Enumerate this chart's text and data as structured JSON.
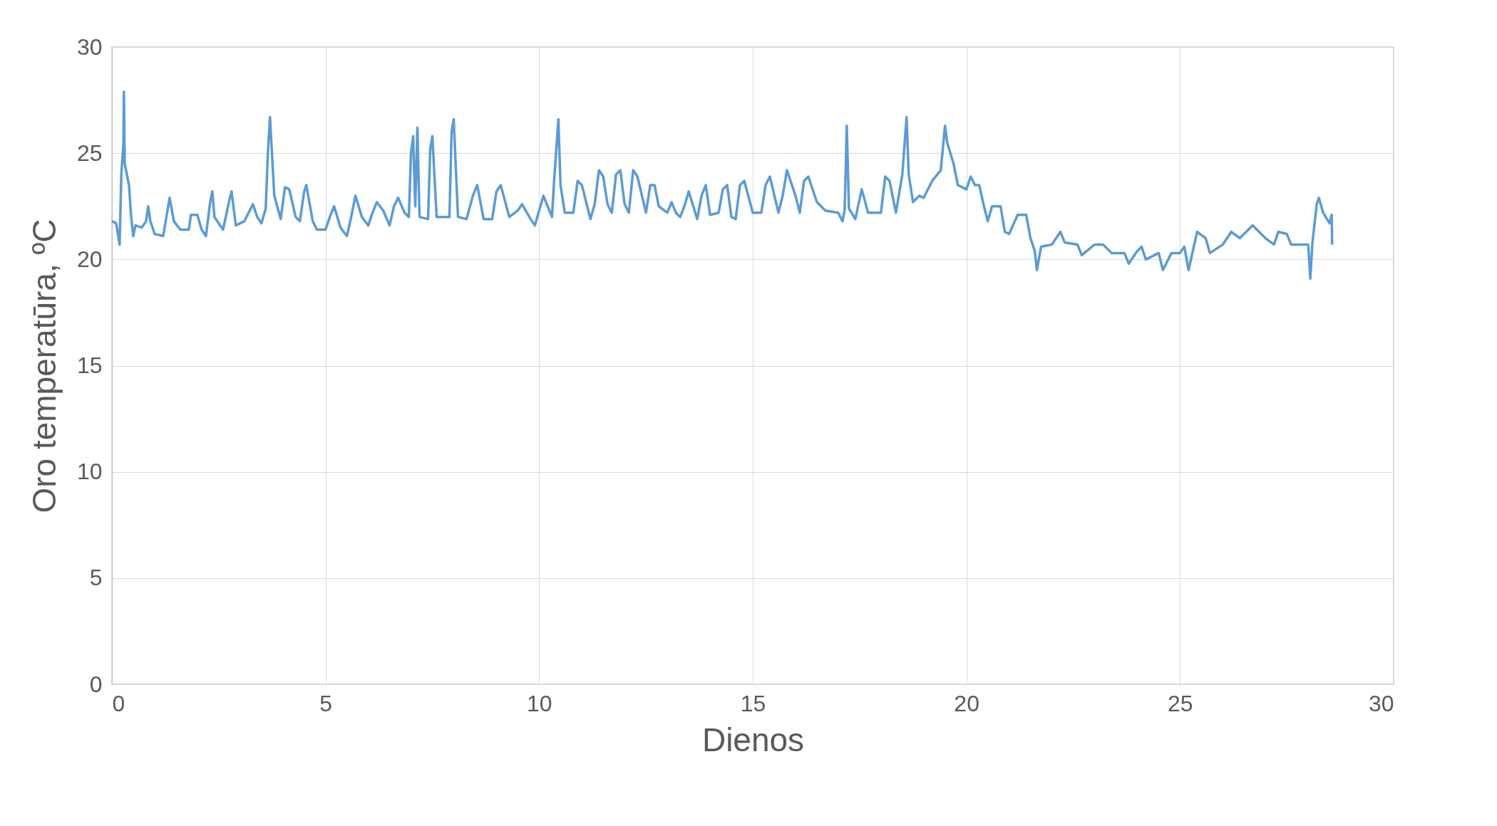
{
  "chart_data": {
    "type": "line",
    "xlabel": "Dienos",
    "ylabel": "Oro temperatūra, ºC",
    "xlim": [
      0,
      30
    ],
    "xticks": [
      0,
      5,
      10,
      15,
      20,
      25,
      30
    ],
    "ylim": [
      0,
      30
    ],
    "yticks": [
      0,
      5,
      10,
      15,
      20,
      25,
      30
    ],
    "grid": true,
    "line_style": "solid",
    "marker": "none",
    "series": [
      {
        "color": "#5b9bd5",
        "x": [
          0.0,
          0.1,
          0.18,
          0.22,
          0.27,
          0.28,
          0.3,
          0.4,
          0.45,
          0.5,
          0.55,
          0.7,
          0.8,
          0.85,
          0.9,
          1.0,
          1.2,
          1.3,
          1.35,
          1.45,
          1.6,
          1.8,
          1.85,
          2.0,
          2.1,
          2.2,
          2.3,
          2.35,
          2.4,
          2.6,
          2.75,
          2.8,
          2.9,
          3.1,
          3.3,
          3.4,
          3.5,
          3.6,
          3.65,
          3.7,
          3.8,
          3.95,
          4.05,
          4.15,
          4.3,
          4.4,
          4.5,
          4.55,
          4.7,
          4.8,
          5.0,
          5.1,
          5.2,
          5.35,
          5.5,
          5.6,
          5.7,
          5.85,
          6.0,
          6.1,
          6.2,
          6.35,
          6.5,
          6.6,
          6.7,
          6.85,
          6.95,
          7.0,
          7.05,
          7.1,
          7.15,
          7.2,
          7.4,
          7.45,
          7.5,
          7.6,
          7.9,
          7.95,
          8.0,
          8.1,
          8.3,
          8.45,
          8.55,
          8.7,
          8.9,
          9.0,
          9.1,
          9.3,
          9.5,
          9.6,
          9.8,
          9.9,
          10.0,
          10.1,
          10.3,
          10.35,
          10.45,
          10.5,
          10.6,
          10.8,
          10.9,
          11.0,
          11.2,
          11.3,
          11.4,
          11.5,
          11.6,
          11.7,
          11.8,
          11.9,
          12.0,
          12.1,
          12.2,
          12.3,
          12.5,
          12.6,
          12.7,
          12.8,
          13.0,
          13.1,
          13.2,
          13.3,
          13.4,
          13.5,
          13.7,
          13.8,
          13.9,
          14.0,
          14.2,
          14.3,
          14.4,
          14.5,
          14.6,
          14.7,
          14.8,
          15.0,
          15.2,
          15.3,
          15.4,
          15.6,
          15.7,
          15.8,
          16.0,
          16.1,
          16.2,
          16.3,
          16.5,
          16.7,
          17.0,
          17.1,
          17.15,
          17.2,
          17.25,
          17.4,
          17.55,
          17.7,
          18.0,
          18.1,
          18.2,
          18.35,
          18.5,
          18.6,
          18.65,
          18.75,
          18.9,
          19.0,
          19.2,
          19.4,
          19.5,
          19.55,
          19.7,
          19.8,
          20.0,
          20.1,
          20.2,
          20.3,
          20.4,
          20.5,
          20.6,
          20.8,
          20.9,
          21.0,
          21.2,
          21.4,
          21.5,
          21.6,
          21.65,
          21.75,
          22.0,
          22.2,
          22.3,
          22.6,
          22.7,
          23.0,
          23.2,
          23.4,
          23.7,
          23.8,
          24.0,
          24.1,
          24.2,
          24.5,
          24.6,
          24.8,
          25.0,
          25.1,
          25.2,
          25.4,
          25.6,
          25.7,
          26.0,
          26.2,
          26.4,
          26.7,
          26.8,
          27.0,
          27.2,
          27.3,
          27.5,
          27.6,
          28.0,
          28.05,
          28.1,
          28.2,
          28.25,
          28.35,
          28.5,
          28.55,
          28.56
        ],
        "values": [
          21.8,
          21.7,
          20.7,
          24.0,
          25.5,
          27.9,
          24.5,
          23.5,
          22.0,
          21.1,
          21.6,
          21.5,
          21.8,
          22.5,
          21.8,
          21.2,
          21.1,
          22.3,
          22.9,
          21.8,
          21.4,
          21.4,
          22.1,
          22.1,
          21.4,
          21.1,
          22.7,
          23.2,
          22.0,
          21.4,
          22.8,
          23.2,
          21.6,
          21.8,
          22.6,
          22.0,
          21.7,
          22.4,
          25.0,
          26.7,
          23.0,
          21.9,
          23.4,
          23.3,
          22.0,
          21.8,
          23.2,
          23.5,
          21.8,
          21.4,
          21.4,
          22.0,
          22.5,
          21.5,
          21.1,
          22.0,
          23.0,
          22.0,
          21.6,
          22.2,
          22.7,
          22.3,
          21.6,
          22.5,
          22.9,
          22.2,
          22.0,
          25.0,
          25.8,
          22.5,
          26.2,
          22.0,
          21.9,
          25.2,
          25.8,
          22.0,
          22.0,
          26.0,
          26.6,
          22.0,
          21.9,
          23.0,
          23.5,
          21.9,
          21.9,
          23.2,
          23.5,
          22.0,
          22.3,
          22.6,
          21.9,
          21.6,
          22.3,
          23.0,
          22.0,
          23.7,
          26.6,
          23.5,
          22.2,
          22.2,
          23.7,
          23.5,
          21.9,
          22.6,
          24.2,
          23.9,
          22.6,
          22.2,
          24.0,
          24.2,
          22.6,
          22.2,
          24.2,
          23.9,
          22.2,
          23.5,
          23.5,
          22.5,
          22.2,
          22.7,
          22.2,
          22.0,
          22.5,
          23.2,
          21.9,
          23.0,
          23.5,
          22.1,
          22.2,
          23.3,
          23.5,
          22.0,
          21.9,
          23.5,
          23.7,
          22.2,
          22.2,
          23.5,
          23.9,
          22.2,
          23.0,
          24.2,
          23.0,
          22.2,
          23.7,
          23.9,
          22.7,
          22.3,
          22.2,
          21.8,
          22.3,
          26.3,
          22.4,
          21.9,
          23.3,
          22.2,
          22.2,
          23.9,
          23.7,
          22.2,
          24.0,
          26.7,
          24.0,
          22.7,
          23.0,
          22.9,
          23.7,
          24.2,
          26.3,
          25.5,
          24.5,
          23.5,
          23.3,
          23.9,
          23.5,
          23.5,
          22.6,
          21.8,
          22.5,
          22.5,
          21.3,
          21.2,
          22.1,
          22.1,
          21.0,
          20.4,
          19.5,
          20.6,
          20.7,
          21.3,
          20.8,
          20.7,
          20.2,
          20.7,
          20.7,
          20.3,
          20.3,
          19.8,
          20.4,
          20.6,
          20.0,
          20.3,
          19.5,
          20.3,
          20.3,
          20.6,
          19.5,
          21.3,
          21.0,
          20.3,
          20.7,
          21.3,
          21.0,
          21.6,
          21.4,
          21.0,
          20.7,
          21.3,
          21.2,
          20.7,
          20.7,
          19.1,
          20.8,
          22.6,
          22.9,
          22.2,
          21.7,
          22.1,
          20.7
        ]
      }
    ]
  }
}
